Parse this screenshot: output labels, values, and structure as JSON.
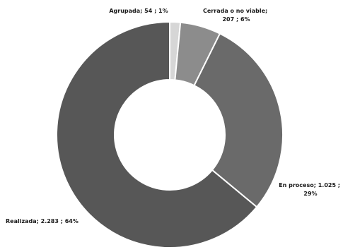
{
  "chart_data": {
    "type": "pie",
    "donut": true,
    "slices": [
      {
        "name": "Agrupada",
        "value": 54,
        "percent": 1,
        "color": "#d6d6d6",
        "label_lines": [
          "Agrupada;  54 ; 1%"
        ]
      },
      {
        "name": "Cerrada o no viable",
        "value": 207,
        "percent": 6,
        "color": "#8c8c8c",
        "label_lines": [
          "Cerrada o no viable;",
          "207 ; 6%"
        ]
      },
      {
        "name": "En proceso",
        "value": 1025,
        "percent": 29,
        "color": "#6a6a6a",
        "label_lines": [
          "En proceso;  1.025 ;",
          "29%"
        ]
      },
      {
        "name": "Realizada",
        "value": 2283,
        "percent": 64,
        "color": "#575757",
        "label_lines": [
          "Realizada;  2.283 ; 64%"
        ]
      }
    ],
    "start_angle_deg": 0,
    "direction": "clockwise",
    "separator_color": "#ffffff"
  }
}
